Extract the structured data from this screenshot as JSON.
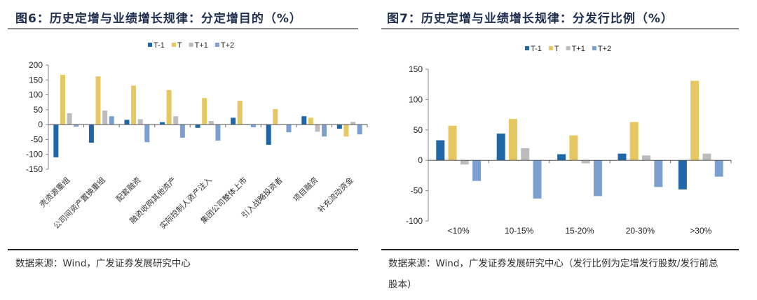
{
  "chart_data": [
    {
      "type": "bar",
      "title": "图6：历史定增与业绩增长规律：分定增目的（%）",
      "xlabel": "",
      "ylabel": "",
      "ylim": [
        -150,
        200
      ],
      "yticks": [
        200,
        150,
        100,
        50,
        0,
        -50,
        -100,
        -150
      ],
      "legend_position": "top-center",
      "grid": false,
      "categories": [
        "壳资源重组",
        "公司间资产置换重组",
        "配套融资",
        "融资收购其他资产",
        "实际控制人资产注入",
        "集团公司整体上市",
        "引入战略投资者",
        "项目融资",
        "补充流动资金"
      ],
      "series": [
        {
          "name": "T-1",
          "color": "#1f67a6",
          "values": [
            -110,
            -61,
            16,
            8,
            -11,
            23,
            -68,
            28,
            -14
          ]
        },
        {
          "name": "T",
          "color": "#e6c862",
          "values": [
            167,
            162,
            131,
            116,
            89,
            80,
            52,
            23,
            -40
          ]
        },
        {
          "name": "T+1",
          "color": "#bcbcbc",
          "values": [
            38,
            47,
            18,
            28,
            12,
            -2,
            -1,
            -24,
            9
          ]
        },
        {
          "name": "T+2",
          "color": "#7b9fd0",
          "values": [
            -7,
            28,
            -59,
            -44,
            -54,
            -9,
            -26,
            -40,
            -33
          ]
        }
      ]
    },
    {
      "type": "bar",
      "title": "图7：历史定增与业绩增长规律：分发行比例（%）",
      "xlabel": "",
      "ylabel": "",
      "ylim": [
        -100,
        150
      ],
      "yticks": [
        150,
        100,
        50,
        0,
        -50,
        -100
      ],
      "legend_position": "top-center",
      "grid": false,
      "categories": [
        "<10%",
        "10-15%",
        "15-20%",
        "20-30%",
        ">30%"
      ],
      "series": [
        {
          "name": "T-1",
          "color": "#1f67a6",
          "values": [
            33,
            44,
            10,
            11,
            -48
          ]
        },
        {
          "name": "T",
          "color": "#e6c862",
          "values": [
            57,
            68,
            41,
            63,
            131
          ]
        },
        {
          "name": "T+1",
          "color": "#bcbcbc",
          "values": [
            -7,
            20,
            -5,
            8,
            11
          ]
        },
        {
          "name": "T+2",
          "color": "#7b9fd0",
          "values": [
            -34,
            -63,
            -59,
            -44,
            -27
          ]
        }
      ]
    }
  ],
  "left": {
    "title": "图6：历史定增与业绩增长规律：分定增目的（%）",
    "source": "数据来源：Wind，广发证券发展研究中心"
  },
  "right": {
    "title": "图7：历史定增与业绩增长规律：分发行比例（%）",
    "source": "数据来源：Wind，广发证券发展研究中心（发行比例为定增发行股数/发行前总股本）"
  }
}
